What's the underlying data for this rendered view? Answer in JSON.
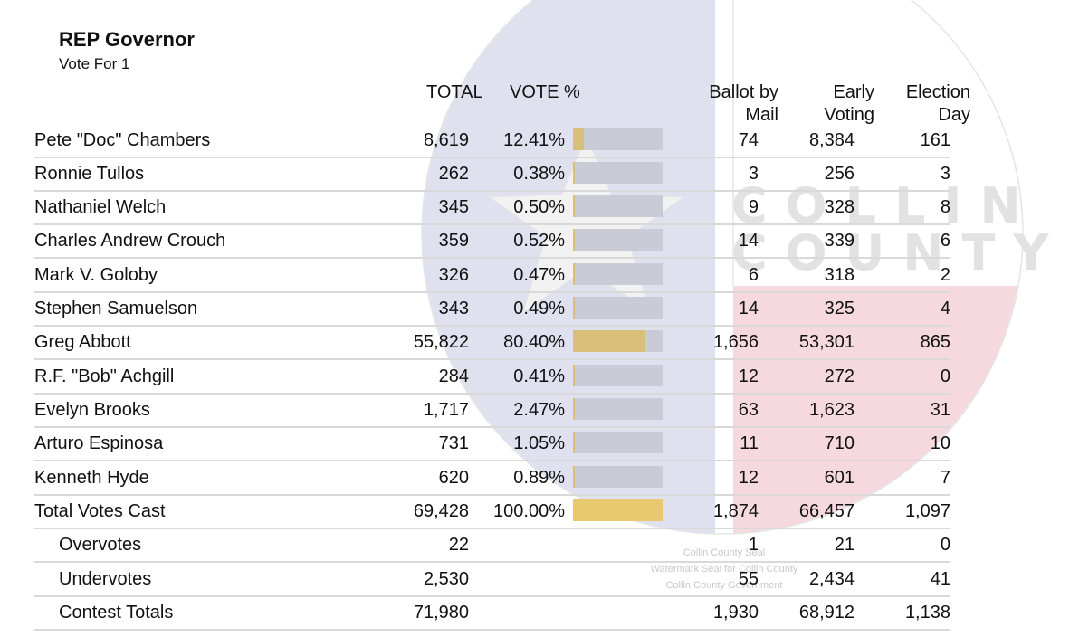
{
  "contest": {
    "title": "REP Governor",
    "vote_for": "Vote For 1"
  },
  "headers": {
    "total": "TOTAL",
    "vote_pct": "VOTE %",
    "mail_line1": "Ballot by",
    "mail_line2": "Mail",
    "early_line1": "Early",
    "early_line2": "Voting",
    "eday_line1": "Election",
    "eday_line2": "Day"
  },
  "candidates": [
    {
      "name": "Pete \"Doc\" Chambers",
      "total": "8,619",
      "pct": "12.41%",
      "pct_value": 12.41,
      "mail": "74",
      "early": "8,384",
      "eday": "161"
    },
    {
      "name": "Ronnie Tullos",
      "total": "262",
      "pct": "0.38%",
      "pct_value": 0.38,
      "mail": "3",
      "early": "256",
      "eday": "3"
    },
    {
      "name": "Nathaniel Welch",
      "total": "345",
      "pct": "0.50%",
      "pct_value": 0.5,
      "mail": "9",
      "early": "328",
      "eday": "8"
    },
    {
      "name": "Charles Andrew Crouch",
      "total": "359",
      "pct": "0.52%",
      "pct_value": 0.52,
      "mail": "14",
      "early": "339",
      "eday": "6"
    },
    {
      "name": "Mark V. Goloby",
      "total": "326",
      "pct": "0.47%",
      "pct_value": 0.47,
      "mail": "6",
      "early": "318",
      "eday": "2"
    },
    {
      "name": "Stephen Samuelson",
      "total": "343",
      "pct": "0.49%",
      "pct_value": 0.49,
      "mail": "14",
      "early": "325",
      "eday": "4"
    },
    {
      "name": "Greg Abbott",
      "total": "55,822",
      "pct": "80.40%",
      "pct_value": 80.4,
      "mail": "1,656",
      "early": "53,301",
      "eday": "865"
    },
    {
      "name": "R.F. \"Bob\" Achgill",
      "total": "284",
      "pct": "0.41%",
      "pct_value": 0.41,
      "mail": "12",
      "early": "272",
      "eday": "0"
    },
    {
      "name": "Evelyn Brooks",
      "total": "1,717",
      "pct": "2.47%",
      "pct_value": 2.47,
      "mail": "63",
      "early": "1,623",
      "eday": "31"
    },
    {
      "name": "Arturo Espinosa",
      "total": "731",
      "pct": "1.05%",
      "pct_value": 1.05,
      "mail": "11",
      "early": "710",
      "eday": "10"
    },
    {
      "name": "Kenneth Hyde",
      "total": "620",
      "pct": "0.89%",
      "pct_value": 0.89,
      "mail": "12",
      "early": "601",
      "eday": "7"
    }
  ],
  "total_votes": {
    "name": "Total Votes Cast",
    "total": "69,428",
    "pct": "100.00%",
    "pct_value": 100,
    "mail": "1,874",
    "early": "66,457",
    "eday": "1,097"
  },
  "overvotes": {
    "name": "Overvotes",
    "total": "22",
    "mail": "1",
    "early": "21",
    "eday": "0"
  },
  "undervotes": {
    "name": "Undervotes",
    "total": "2,530",
    "mail": "55",
    "early": "2,434",
    "eday": "41"
  },
  "contest_totals": {
    "name": "Contest Totals",
    "total": "71,980",
    "mail": "1,930",
    "early": "68,912",
    "eday": "1,138"
  },
  "watermark": {
    "seal_line1": "COLLIN",
    "seal_line2": "COUNTY",
    "caption_line1": "Collin County Seal",
    "caption_line2": "Watermark Seal for Collin County",
    "caption_line3": "Collin County Government"
  },
  "colors": {
    "bar_fill": "#d8bf7a",
    "bar_track": "#c9ccd6",
    "seal_blue": "#dfe1ef",
    "seal_red": "#f6d9de"
  }
}
